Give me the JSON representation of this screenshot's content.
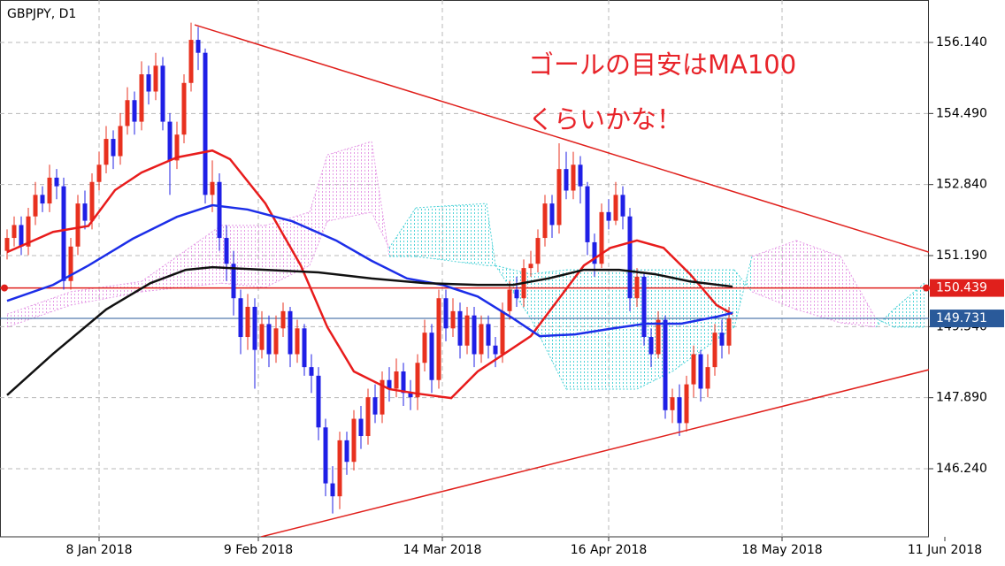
{
  "chart_data": {
    "type": "candlestick",
    "title": "GBPJPY, D1",
    "annotations": [
      "ゴールの目安はMA100",
      "くらいかな！"
    ],
    "xlim": [
      -1,
      130.25
    ],
    "xticks": [
      {
        "value": 13,
        "label": "8 Jan 2018"
      },
      {
        "value": 35.5,
        "label": "9 Feb 2018"
      },
      {
        "value": 61.5,
        "label": "14 Mar 2018"
      },
      {
        "value": 85,
        "label": "16 Apr 2018"
      },
      {
        "value": 109.5,
        "label": "18 May 2018"
      },
      {
        "value": 132.5,
        "label": "11 Jun 2018"
      }
    ],
    "ylim": [
      144.659,
      157.126
    ],
    "yticks": [
      {
        "value": 156.14,
        "label": "156.140"
      },
      {
        "value": 154.49,
        "label": "154.490"
      },
      {
        "value": 152.84,
        "label": "152.840"
      },
      {
        "value": 151.19,
        "label": "151.190"
      },
      {
        "value": 149.54,
        "label": "149.540"
      },
      {
        "value": 147.89,
        "label": "147.890"
      },
      {
        "value": 146.24,
        "label": "146.240"
      }
    ],
    "grid": true,
    "up_color": "#e8311f",
    "down_color": "#1f1fe6",
    "candles": {
      "open": [
        151.3,
        151.6,
        151.9,
        151.4,
        152.1,
        152.6,
        152.4,
        153.0,
        152.8,
        150.6,
        151.4,
        152.4,
        152.0,
        152.9,
        153.3,
        153.9,
        153.5,
        154.2,
        154.8,
        154.3,
        155.4,
        155.0,
        155.6,
        154.3,
        153.4,
        154.0,
        155.2,
        156.2,
        155.9,
        152.6,
        152.9,
        151.6,
        151.0,
        150.2,
        149.3,
        150.0,
        149.0,
        149.6,
        148.9,
        149.5,
        149.9,
        148.9,
        149.5,
        148.6,
        148.4,
        147.2,
        145.9,
        145.6,
        146.9,
        146.4,
        147.4,
        147.0,
        147.9,
        147.5,
        148.3,
        148.1,
        148.5,
        148.0,
        147.9,
        148.7,
        149.4,
        148.3,
        150.2,
        149.5,
        149.9,
        149.1,
        149.8,
        148.9,
        149.6,
        149.1,
        148.9,
        149.9,
        150.4,
        150.2,
        150.9,
        151.0,
        151.6,
        152.4,
        151.9,
        153.2,
        152.7,
        153.3,
        152.8,
        151.5,
        151.0,
        152.2,
        152.0,
        152.6,
        152.1,
        150.2,
        150.7,
        149.3,
        148.9,
        149.7,
        147.6,
        147.9,
        147.3,
        148.2,
        148.9,
        148.1,
        148.6,
        149.4,
        149.1
      ],
      "high": [
        151.8,
        152.1,
        152.1,
        152.3,
        152.9,
        152.8,
        153.3,
        153.2,
        153.0,
        151.6,
        152.6,
        152.7,
        153.1,
        153.6,
        154.2,
        154.1,
        154.5,
        155.1,
        155.0,
        155.7,
        155.6,
        155.9,
        155.8,
        154.5,
        154.3,
        155.4,
        156.6,
        156.5,
        156.0,
        153.4,
        153.1,
        151.9,
        151.3,
        150.4,
        150.3,
        150.2,
        149.9,
        149.8,
        149.8,
        150.1,
        150.0,
        149.7,
        149.6,
        148.9,
        148.6,
        147.4,
        146.3,
        147.1,
        147.1,
        147.6,
        147.7,
        148.1,
        148.2,
        148.5,
        148.6,
        148.8,
        148.7,
        148.3,
        148.9,
        149.7,
        149.6,
        150.4,
        150.4,
        150.2,
        150.1,
        150.0,
        150.0,
        149.8,
        149.8,
        149.3,
        150.1,
        150.6,
        150.7,
        151.1,
        151.3,
        151.8,
        152.6,
        152.6,
        153.8,
        153.6,
        153.6,
        153.5,
        152.9,
        151.7,
        152.4,
        152.5,
        152.9,
        152.8,
        152.3,
        150.9,
        150.8,
        149.5,
        149.9,
        149.8,
        148.1,
        148.2,
        148.4,
        149.1,
        149.0,
        148.9,
        149.6,
        149.7,
        150.0
      ],
      "low": [
        151.1,
        151.4,
        151.2,
        151.2,
        151.9,
        152.2,
        152.2,
        152.5,
        150.4,
        150.4,
        151.2,
        151.8,
        151.8,
        152.7,
        153.1,
        153.2,
        153.3,
        154.0,
        154.0,
        154.1,
        154.7,
        154.8,
        154.1,
        152.6,
        153.2,
        153.8,
        155.0,
        155.5,
        152.4,
        152.2,
        151.3,
        150.6,
        149.8,
        148.9,
        149.0,
        148.1,
        148.8,
        148.6,
        148.7,
        149.3,
        148.6,
        148.7,
        148.4,
        148.0,
        146.9,
        145.6,
        145.2,
        145.3,
        146.1,
        146.2,
        146.7,
        146.8,
        147.3,
        147.3,
        147.8,
        147.9,
        147.7,
        147.6,
        147.6,
        148.5,
        148.0,
        148.1,
        149.2,
        149.3,
        148.8,
        148.9,
        148.6,
        148.7,
        148.8,
        148.6,
        148.7,
        149.7,
        150.0,
        150.0,
        150.7,
        150.8,
        151.4,
        151.6,
        151.7,
        152.5,
        152.5,
        152.4,
        151.2,
        150.7,
        150.9,
        151.8,
        151.9,
        151.8,
        149.9,
        150.0,
        149.1,
        148.6,
        148.8,
        147.4,
        147.3,
        147.0,
        147.1,
        147.9,
        147.8,
        147.9,
        148.4,
        148.8,
        148.9
      ],
      "close": [
        151.6,
        151.9,
        151.4,
        152.1,
        152.6,
        152.4,
        153.0,
        152.8,
        150.6,
        151.4,
        152.4,
        152.0,
        152.9,
        153.3,
        153.9,
        153.5,
        154.2,
        154.8,
        154.3,
        155.4,
        155.0,
        155.6,
        154.3,
        153.4,
        154.0,
        155.2,
        156.2,
        155.9,
        152.6,
        152.9,
        151.6,
        151.0,
        150.2,
        149.3,
        150.0,
        149.0,
        149.6,
        148.9,
        149.5,
        149.9,
        148.9,
        149.5,
        148.6,
        148.4,
        147.2,
        145.9,
        145.6,
        146.9,
        146.4,
        147.4,
        147.0,
        147.9,
        147.5,
        148.3,
        148.1,
        148.5,
        148.0,
        147.9,
        148.7,
        149.4,
        148.3,
        150.2,
        149.5,
        149.9,
        149.1,
        149.8,
        148.9,
        149.6,
        149.1,
        148.9,
        149.9,
        150.4,
        150.2,
        150.9,
        151.0,
        151.6,
        152.4,
        151.9,
        153.2,
        152.7,
        153.3,
        152.8,
        151.5,
        151.0,
        152.2,
        152.0,
        152.6,
        152.1,
        150.2,
        150.7,
        149.3,
        148.9,
        149.7,
        147.6,
        147.9,
        147.3,
        148.2,
        148.9,
        148.1,
        148.6,
        149.4,
        149.1,
        149.73
      ]
    },
    "cloud": {
      "x": [
        0,
        9,
        19,
        30.25,
        36.5,
        42.75,
        45.25,
        51.5,
        54,
        57.75,
        67.75,
        69,
        74,
        79,
        89,
        94,
        102.75,
        105.25,
        111.5,
        117.75,
        122.75,
        125.25,
        129.6
      ],
      "span_a": [
        149.53,
        150.04,
        150.35,
        150.55,
        150.45,
        150.96,
        151.99,
        152.2,
        151.37,
        152.3,
        152.4,
        150.96,
        150.76,
        150.86,
        150.86,
        150.86,
        150.86,
        150.35,
        149.94,
        149.63,
        149.53,
        149.94,
        150.55
      ],
      "span_b": [
        149.83,
        150.35,
        150.59,
        151.89,
        151.89,
        152.2,
        153.53,
        153.84,
        151.17,
        151.17,
        150.96,
        150.96,
        149.73,
        148.09,
        148.09,
        148.5,
        149.53,
        151.17,
        151.54,
        151.17,
        149.73,
        149.53,
        149.53
      ],
      "up_color": "#4fd3d8",
      "down_color": "#e59be6"
    },
    "lines": [
      {
        "color": "#e81c1c",
        "x": [
          0,
          6.5,
          11.5,
          15.25,
          19,
          24,
          29,
          31.5,
          36.5,
          41.5,
          45.25,
          49,
          54,
          57.75,
          62.75,
          66.5,
          70.25,
          74,
          77.75,
          81.5,
          85.25,
          89,
          92.75,
          96.5,
          100.25,
          102.5
        ],
        "values": [
          151.27,
          151.74,
          151.88,
          152.71,
          153.12,
          153.47,
          153.63,
          153.43,
          152.4,
          150.96,
          149.53,
          148.5,
          148.09,
          147.99,
          147.88,
          148.5,
          148.91,
          149.32,
          150.14,
          150.96,
          151.37,
          151.54,
          151.37,
          150.76,
          150.04,
          149.83
        ]
      },
      {
        "color": "#1c2ee8",
        "x": [
          0,
          6.5,
          11.5,
          17.75,
          24,
          29,
          34,
          40.25,
          46.5,
          51.5,
          56.5,
          61.5,
          66.5,
          71.5,
          75.25,
          80.25,
          85.25,
          90.25,
          95.25,
          100.25,
          102.5
        ],
        "values": [
          150.14,
          150.51,
          150.96,
          151.58,
          152.09,
          152.36,
          152.26,
          151.99,
          151.54,
          151.07,
          150.66,
          150.51,
          150.24,
          149.73,
          149.32,
          149.36,
          149.49,
          149.61,
          149.61,
          149.77,
          149.86
        ]
      },
      {
        "color": "#111111",
        "x": [
          0,
          6.5,
          14,
          20.25,
          25.25,
          29,
          36.5,
          44,
          51.5,
          59,
          66.5,
          71.5,
          76.5,
          81.5,
          86.5,
          91.5,
          96.5,
          102.5
        ],
        "values": [
          147.95,
          148.91,
          149.94,
          150.55,
          150.86,
          150.92,
          150.86,
          150.8,
          150.66,
          150.55,
          150.51,
          150.51,
          150.66,
          150.86,
          150.86,
          150.76,
          150.59,
          150.47
        ]
      }
    ],
    "trendlines": [
      {
        "color": "#e0201c",
        "x": [
          26.5,
          130.25
        ],
        "values": [
          156.55,
          151.27
        ]
      },
      {
        "color": "#e0201c",
        "x": [
          35.9,
          130.25
        ],
        "values": [
          144.66,
          148.54
        ]
      }
    ],
    "hlines": [
      {
        "value": 150.439,
        "label": "150.439",
        "color": "#e0201c"
      },
      {
        "value": 149.731,
        "label": "149.731",
        "color": "#2a5a9a"
      }
    ]
  }
}
